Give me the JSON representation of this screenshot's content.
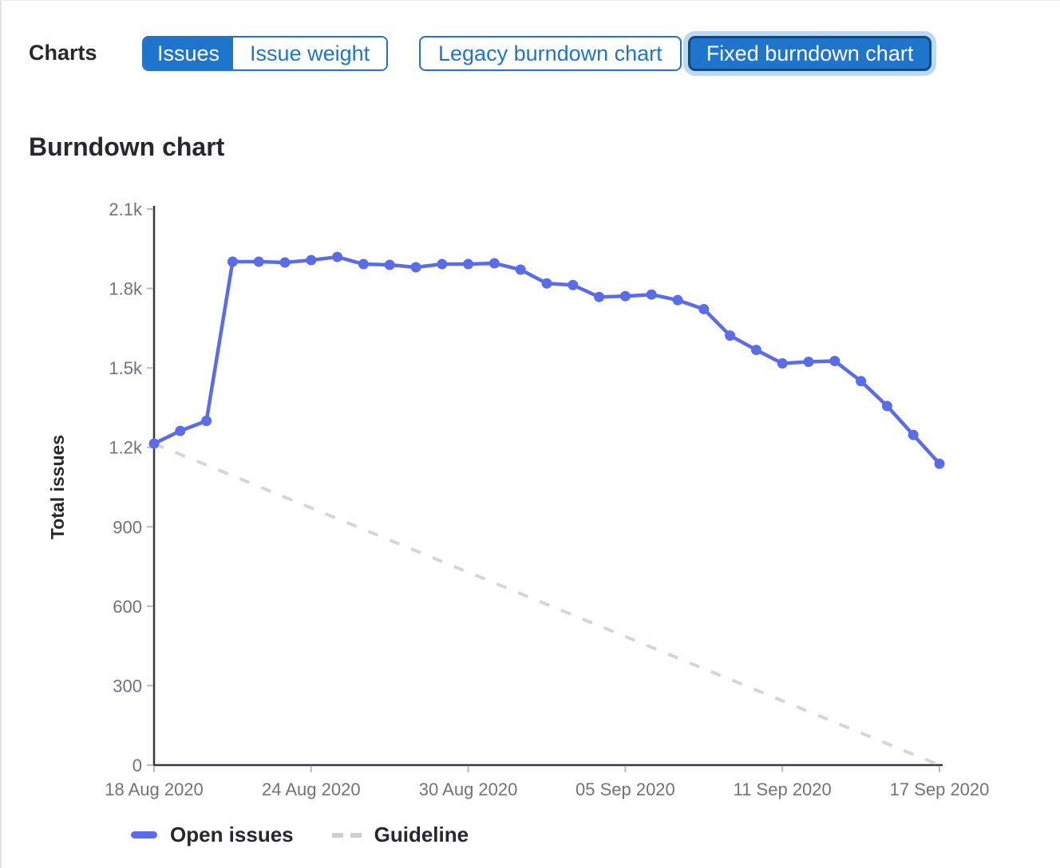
{
  "header": {
    "charts_label": "Charts",
    "metric_toggle": {
      "issues_label": "Issues",
      "issue_weight_label": "Issue weight",
      "selected": "Issues"
    },
    "chart_toggle": {
      "legacy_label": "Legacy burndown chart",
      "fixed_label": "Fixed burndown chart",
      "selected": "Fixed burndown chart"
    }
  },
  "section": {
    "title": "Burndown chart"
  },
  "colors": {
    "button_blue": "#1f75cb",
    "selected_button_border": "#0e4a85",
    "focus_ring": "#bdd8f2",
    "open_issues_line": "#5b6ce8",
    "guideline": "#d6d6d9",
    "axis_line": "#3a383f",
    "tick_label": "#737278",
    "text_dark": "#28272d"
  },
  "chart_data": {
    "type": "line",
    "title": "Burndown chart",
    "xlabel": "",
    "ylabel": "Total issues",
    "ylim": [
      0,
      2100
    ],
    "grid": false,
    "legend_position": "bottom",
    "y_ticks": [
      {
        "value": 0,
        "label": "0"
      },
      {
        "value": 300,
        "label": "300"
      },
      {
        "value": 600,
        "label": "600"
      },
      {
        "value": 900,
        "label": "900"
      },
      {
        "value": 1200,
        "label": "1.2k"
      },
      {
        "value": 1500,
        "label": "1.5k"
      },
      {
        "value": 1800,
        "label": "1.8k"
      },
      {
        "value": 2100,
        "label": "2.1k"
      }
    ],
    "x": [
      "18 Aug 2020",
      "19 Aug 2020",
      "20 Aug 2020",
      "21 Aug 2020",
      "22 Aug 2020",
      "23 Aug 2020",
      "24 Aug 2020",
      "25 Aug 2020",
      "26 Aug 2020",
      "27 Aug 2020",
      "28 Aug 2020",
      "29 Aug 2020",
      "30 Aug 2020",
      "31 Aug 2020",
      "01 Sep 2020",
      "02 Sep 2020",
      "03 Sep 2020",
      "04 Sep 2020",
      "05 Sep 2020",
      "06 Sep 2020",
      "07 Sep 2020",
      "08 Sep 2020",
      "09 Sep 2020",
      "10 Sep 2020",
      "11 Sep 2020",
      "12 Sep 2020",
      "13 Sep 2020",
      "14 Sep 2020",
      "15 Sep 2020",
      "16 Sep 2020",
      "17 Sep 2020"
    ],
    "x_tick_labels": [
      "18 Aug 2020",
      "24 Aug 2020",
      "30 Aug 2020",
      "05 Sep 2020",
      "11 Sep 2020",
      "17 Sep 2020"
    ],
    "series": [
      {
        "name": "Open issues",
        "style": "solid",
        "color": "#5b6ce8",
        "values": [
          1214,
          1262,
          1300,
          1901,
          1901,
          1898,
          1907,
          1919,
          1892,
          1889,
          1880,
          1892,
          1892,
          1895,
          1871,
          1819,
          1813,
          1768,
          1771,
          1777,
          1756,
          1722,
          1622,
          1568,
          1517,
          1523,
          1526,
          1450,
          1356,
          1247,
          1138
        ]
      },
      {
        "name": "Guideline",
        "style": "dashed",
        "color": "#d6d6d9",
        "values_endpoints": [
          1214,
          0
        ]
      }
    ]
  }
}
